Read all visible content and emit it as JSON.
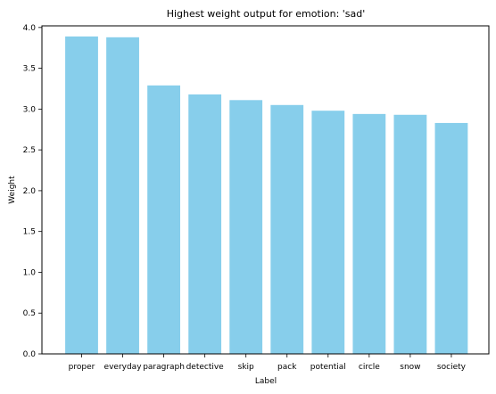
{
  "chart_data": {
    "type": "bar",
    "title": "Highest weight output for emotion: 'sad'",
    "xlabel": "Label",
    "ylabel": "Weight",
    "categories": [
      "proper",
      "everyday",
      "paragraph",
      "detective",
      "skip",
      "pack",
      "potential",
      "circle",
      "snow",
      "society"
    ],
    "values": [
      3.89,
      3.88,
      3.29,
      3.18,
      3.11,
      3.05,
      2.98,
      2.94,
      2.93,
      2.83
    ],
    "ylim": [
      0,
      4.02
    ],
    "yticks": [
      "0.0",
      "0.5",
      "1.0",
      "1.5",
      "2.0",
      "2.5",
      "3.0",
      "3.5",
      "4.0"
    ],
    "bar_color": "#87CEEB",
    "grid": false,
    "legend": "none"
  }
}
